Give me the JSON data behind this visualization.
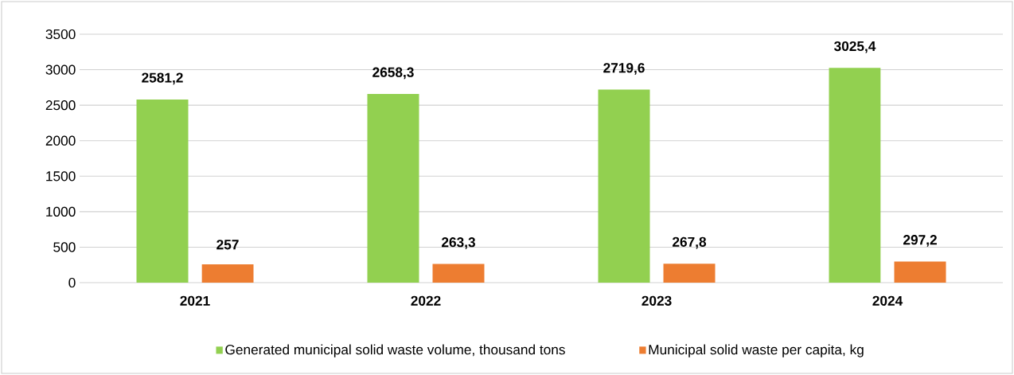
{
  "chart_data": {
    "type": "bar",
    "categories": [
      "2021",
      "2022",
      "2023",
      "2024"
    ],
    "series": [
      {
        "name": "Generated municipal solid waste volume, thousand tons",
        "color": "#92d050",
        "values": [
          2581.2,
          2658.3,
          2719.6,
          3025.4
        ],
        "value_labels": [
          "2581,2",
          "2658,3",
          "2719,6",
          "3025,4"
        ]
      },
      {
        "name": "Municipal solid waste per capita, kg",
        "color": "#ed7d31",
        "values": [
          257,
          263.3,
          267.8,
          297.2
        ],
        "value_labels": [
          "257",
          "263,3",
          "267,8",
          "297,2"
        ]
      }
    ],
    "ylim": [
      0,
      3500
    ],
    "yticks": [
      0,
      500,
      1000,
      1500,
      2000,
      2500,
      3000,
      3500
    ],
    "grid": "y",
    "legend": "bottom"
  }
}
